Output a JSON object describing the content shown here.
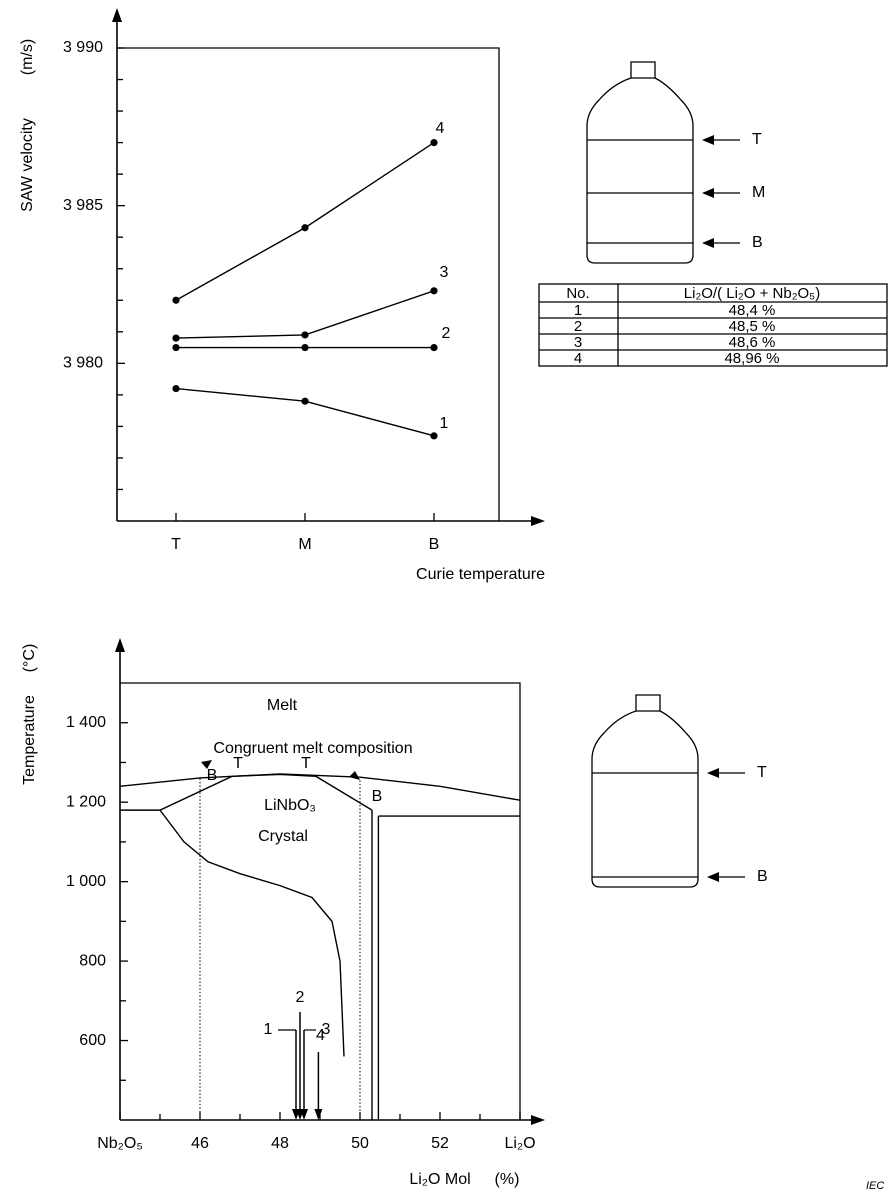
{
  "chart_data": [
    {
      "type": "line",
      "y_label": "SAW velocity",
      "y_unit": "(m/s)",
      "x_label": "Curie temperature",
      "categories": [
        "T",
        "M",
        "B"
      ],
      "series": [
        {
          "name": "1",
          "color": "#000000",
          "values": [
            3979.2,
            3978.8,
            3977.7
          ]
        },
        {
          "name": "2",
          "color": "#000000",
          "values": [
            3980.5,
            3980.5,
            3980.5
          ]
        },
        {
          "name": "3",
          "color": "#000000",
          "values": [
            3980.8,
            3980.9,
            3982.3
          ]
        },
        {
          "name": "4",
          "color": "#000000",
          "values": [
            3982.0,
            3984.3,
            3987.0
          ]
        }
      ],
      "ylim": [
        3975,
        3990
      ],
      "yticks": [
        {
          "value": 3980,
          "label": "3 980"
        },
        {
          "value": 3985,
          "label": "3 985"
        },
        {
          "value": 3990,
          "label": "3 990"
        }
      ],
      "yminor": [
        3976,
        3977,
        3978,
        3979,
        3981,
        3982,
        3983,
        3984,
        3986,
        3987,
        3988,
        3989
      ],
      "frame": true
    },
    {
      "type": "phase",
      "y_label": "Temperature",
      "y_unit": "(°C)",
      "x_label": "Li₂O Mol",
      "x_unit": "(%)",
      "xlim": [
        44,
        54
      ],
      "xticks": [
        {
          "value": 44,
          "label": "Nb₂O₅"
        },
        46,
        48,
        50,
        52,
        {
          "value": 54,
          "label": "Li₂O"
        }
      ],
      "xminor": [
        45,
        47,
        49,
        51,
        53
      ],
      "ylim": [
        400,
        1500
      ],
      "yticks": [
        600,
        800,
        {
          "value": 1000,
          "label": "1 000"
        },
        {
          "value": 1200,
          "label": "1 200"
        },
        {
          "value": 1400,
          "label": "1 400"
        }
      ],
      "yminor": [
        500,
        700,
        900,
        1100,
        1300
      ],
      "frame": true,
      "curves": [
        {
          "style": "solid",
          "x": [
            44,
            46,
            48,
            50,
            52,
            54
          ],
          "values": [
            1240,
            1261,
            1271,
            1263,
            1240,
            1205
          ]
        },
        {
          "style": "solid",
          "x": [
            44,
            45,
            46.8,
            48,
            48.9,
            50.3
          ],
          "values": [
            1180,
            1180,
            1265,
            1270,
            1265,
            1180
          ]
        },
        {
          "style": "solid",
          "x": [
            50.46,
            54
          ],
          "values": [
            1165,
            1165
          ]
        },
        {
          "style": "solid",
          "x": [
            50.3,
            50.3
          ],
          "values": [
            1180,
            400
          ]
        },
        {
          "style": "solid",
          "x": [
            50.46,
            50.46
          ],
          "values": [
            1165,
            400
          ]
        },
        {
          "style": "solid",
          "x": [
            45,
            45.6,
            46.2,
            47,
            48,
            48.8,
            49.3,
            49.5,
            49.6
          ],
          "values": [
            1180,
            1100,
            1050,
            1020,
            990,
            960,
            900,
            800,
            560
          ]
        },
        {
          "style": "dotted",
          "x": [
            46,
            46
          ],
          "values": [
            1260,
            400
          ]
        },
        {
          "style": "dotted",
          "x": [
            50,
            50
          ],
          "values": [
            1255,
            400
          ]
        }
      ],
      "markers": [
        {
          "label": "1",
          "x": 48.4
        },
        {
          "label": "2",
          "x": 48.5
        },
        {
          "label": "3",
          "x": 48.6
        },
        {
          "label": "4",
          "x": 48.96
        }
      ],
      "annotations": [
        "Melt",
        "Congruent melt composition",
        "LiNbO₃",
        "Crystal",
        "B",
        "T",
        "T",
        "B"
      ]
    }
  ],
  "bottles": [
    {
      "labels": [
        "T",
        "M",
        "B"
      ]
    },
    {
      "labels": [
        "T",
        "B"
      ]
    }
  ],
  "table": {
    "header": [
      "No.",
      "Li₂O/( Li₂O + Nb₂O₅)"
    ],
    "rows": [
      [
        "1",
        "48,4 %"
      ],
      [
        "2",
        "48,5 %"
      ],
      [
        "3",
        "48,6 %"
      ],
      [
        "4",
        "48,96 %"
      ]
    ]
  },
  "credit": "IEC"
}
